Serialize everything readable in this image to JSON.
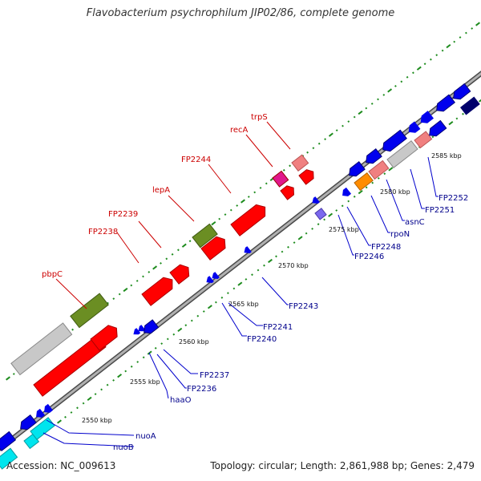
{
  "title": "Flavobacterium psychrophilum JIP02/86, complete genome",
  "footer": {
    "accession": "Accession: NC_009613",
    "summary": "Topology: circular; Length: 2,861,988 bp; Genes: 2,479"
  },
  "colors": {
    "backbone": "#9a9a9a",
    "backbone_edge": "#4a4a4a",
    "tick_green": "#1e8c1e",
    "label_upper": "#cc0000",
    "label_lower": "#00008b",
    "red": "#ff0000",
    "pink": "#f08080",
    "magenta": "#e0188c",
    "olive": "#6b8e23",
    "grey": "#c8c8c8",
    "blue": "#0000ee",
    "navy": "#00006b",
    "orange": "#ff8c00",
    "lavender": "#7b68ee",
    "cyan": "#00e5ee"
  },
  "kbp_marks": [
    "2550 kbp",
    "2555 kbp",
    "2560 kbp",
    "2565 kbp",
    "2570 kbp",
    "2575 kbp",
    "2580 kbp",
    "2585 kbp"
  ],
  "upper_labels": [
    "pbpC",
    "FP2238",
    "FP2239",
    "lepA",
    "FP2244",
    "recA",
    "trpS"
  ],
  "lower_labels": [
    "nuoA",
    "nuoB",
    "haaO",
    "FP2236",
    "FP2237",
    "FP2240",
    "FP2241",
    "FP2243",
    "FP2246",
    "FP2248",
    "rpoN",
    "asnC",
    "FP2251",
    "FP2252"
  ]
}
